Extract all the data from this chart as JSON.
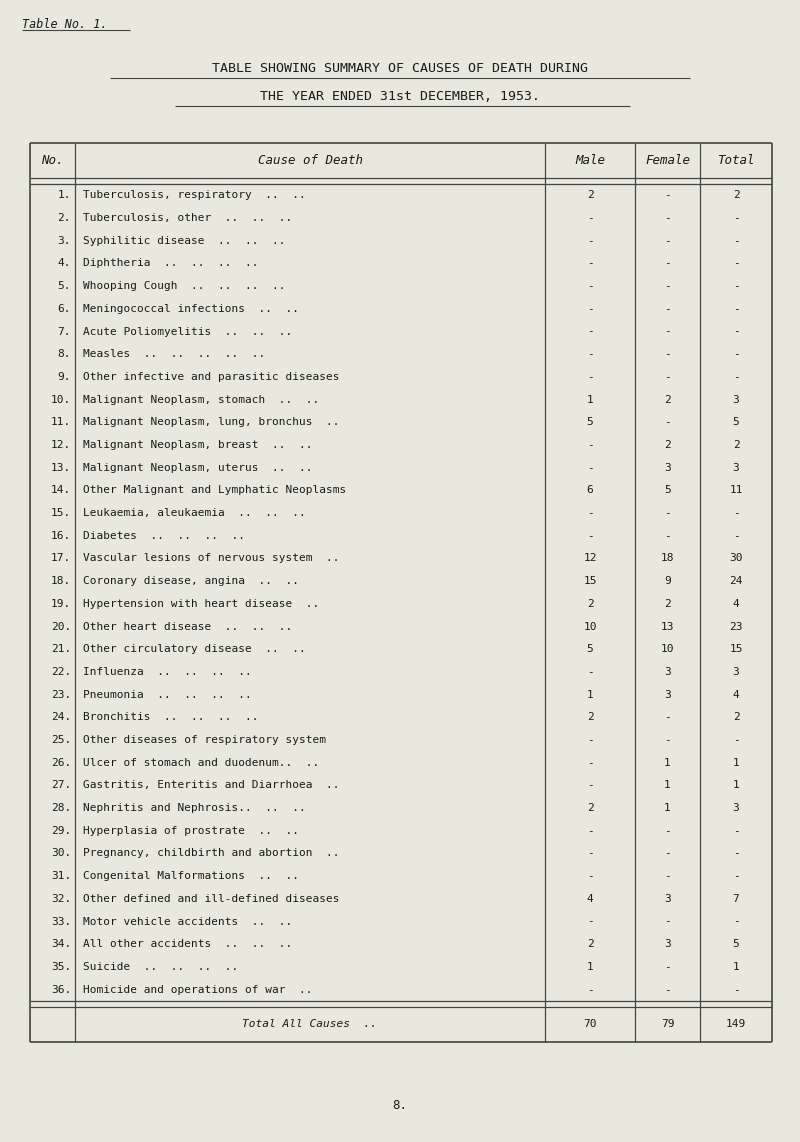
{
  "title_line1": "TABLE SHOWING SUMMARY OF CAUSES OF DEATH DURING",
  "title_line2": "THE YEAR ENDED 31st DECEMBER, 1953.",
  "table_label": "Table No. 1.",
  "page_number": "8.",
  "header": [
    "No.",
    "Cause of Death",
    "Male",
    "Female",
    "Total"
  ],
  "rows": [
    [
      "1.",
      "Tuberculosis, respiratory  ..  ..",
      "2",
      "-",
      "2"
    ],
    [
      "2.",
      "Tuberculosis, other  ..  ..  ..",
      "-",
      "-",
      "-"
    ],
    [
      "3.",
      "Syphilitic disease  ..  ..  ..",
      "-",
      "-",
      "-"
    ],
    [
      "4.",
      "Diphtheria  ..  ..  ..  ..",
      "-",
      "-",
      "-"
    ],
    [
      "5.",
      "Whooping Cough  ..  ..  ..  ..",
      "-",
      "-",
      "-"
    ],
    [
      "6.",
      "Meningococcal infections  ..  ..",
      "-",
      "-",
      "-"
    ],
    [
      "7.",
      "Acute Poliomyelitis  ..  ..  ..",
      "-",
      "-",
      "-"
    ],
    [
      "8.",
      "Measles  ..  ..  ..  ..  ..",
      "-",
      "-",
      "-"
    ],
    [
      "9.",
      "Other infective and parasitic diseases",
      "-",
      "-",
      "-"
    ],
    [
      "10.",
      "Malignant Neoplasm, stomach  ..  ..",
      "1",
      "2",
      "3"
    ],
    [
      "11.",
      "Malignant Neoplasm, lung, bronchus  ..",
      "5",
      "-",
      "5"
    ],
    [
      "12.",
      "Malignant Neoplasm, breast  ..  ..",
      "-",
      "2",
      "2"
    ],
    [
      "13.",
      "Malignant Neoplasm, uterus  ..  ..",
      "-",
      "3",
      "3"
    ],
    [
      "14.",
      "Other Malignant and Lymphatic Neoplasms",
      "6",
      "5",
      "11"
    ],
    [
      "15.",
      "Leukaemia, aleukaemia  ..  ..  ..",
      "-",
      "-",
      "-"
    ],
    [
      "16.",
      "Diabetes  ..  ..  ..  ..",
      "-",
      "-",
      "-"
    ],
    [
      "17.",
      "Vascular lesions of nervous system  ..",
      "12",
      "18",
      "30"
    ],
    [
      "18.",
      "Coronary disease, angina  ..  ..",
      "15",
      "9",
      "24"
    ],
    [
      "19.",
      "Hypertension with heart disease  ..",
      "2",
      "2",
      "4"
    ],
    [
      "20.",
      "Other heart disease  ..  ..  ..",
      "10",
      "13",
      "23"
    ],
    [
      "21.",
      "Other circulatory disease  ..  ..",
      "5",
      "10",
      "15"
    ],
    [
      "22.",
      "Influenza  ..  ..  ..  ..",
      "-",
      "3",
      "3"
    ],
    [
      "23.",
      "Pneumonia  ..  ..  ..  ..",
      "1",
      "3",
      "4"
    ],
    [
      "24.",
      "Bronchitis  ..  ..  ..  ..",
      "2",
      "-",
      "2"
    ],
    [
      "25.",
      "Other diseases of respiratory system",
      "-",
      "-",
      "-"
    ],
    [
      "26.",
      "Ulcer of stomach and duodenum..  ..",
      "-",
      "1",
      "1"
    ],
    [
      "27.",
      "Gastritis, Enteritis and Diarrhoea  ..",
      "-",
      "1",
      "1"
    ],
    [
      "28.",
      "Nephritis and Nephrosis..  ..  ..",
      "2",
      "1",
      "3"
    ],
    [
      "29.",
      "Hyperplasia of prostrate  ..  ..",
      "-",
      "-",
      "-"
    ],
    [
      "30.",
      "Pregnancy, childbirth and abortion  ..",
      "-",
      "-",
      "-"
    ],
    [
      "31.",
      "Congenital Malformations  ..  ..",
      "-",
      "-",
      "-"
    ],
    [
      "32.",
      "Other defined and ill-defined diseases",
      "4",
      "3",
      "7"
    ],
    [
      "33.",
      "Motor vehicle accidents  ..  ..",
      "-",
      "-",
      "-"
    ],
    [
      "34.",
      "All other accidents  ..  ..  ..",
      "2",
      "3",
      "5"
    ],
    [
      "35.",
      "Suicide  ..  ..  ..  ..",
      "1",
      "-",
      "1"
    ],
    [
      "36.",
      "Homicide and operations of war  ..",
      "-",
      "-",
      "-"
    ]
  ],
  "total_row": [
    "",
    "Total All Causes  ..",
    "70",
    "79",
    "149"
  ],
  "bg_color": "#e8e8de",
  "text_color": "#1a1a1a",
  "line_color": "#444444",
  "page_num": "8."
}
